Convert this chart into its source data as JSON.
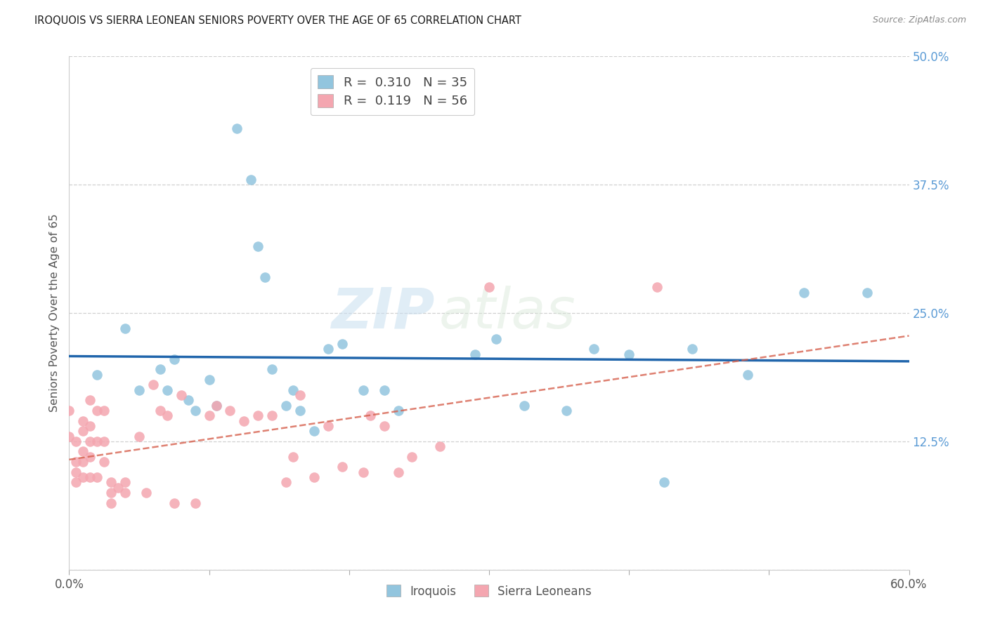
{
  "title": "IROQUOIS VS SIERRA LEONEAN SENIORS POVERTY OVER THE AGE OF 65 CORRELATION CHART",
  "source": "Source: ZipAtlas.com",
  "ylabel": "Seniors Poverty Over the Age of 65",
  "xlim": [
    0.0,
    0.6
  ],
  "ylim": [
    0.0,
    0.5
  ],
  "xticks": [
    0.0,
    0.1,
    0.2,
    0.3,
    0.4,
    0.5,
    0.6
  ],
  "yticks": [
    0.0,
    0.125,
    0.25,
    0.375,
    0.5
  ],
  "yticklabels": [
    "",
    "12.5%",
    "25.0%",
    "37.5%",
    "50.0%"
  ],
  "grid_color": "#d0d0d0",
  "background_color": "#ffffff",
  "iroquois_color": "#92c5de",
  "sierra_color": "#f4a6b0",
  "iroquois_line_color": "#2166ac",
  "sierra_line_color": "#d6604d",
  "legend_iroquois_R": "0.310",
  "legend_iroquois_N": "35",
  "legend_sierra_R": "0.119",
  "legend_sierra_N": "56",
  "watermark_zip": "ZIP",
  "watermark_atlas": "atlas",
  "iroquois_x": [
    0.02,
    0.04,
    0.05,
    0.065,
    0.07,
    0.075,
    0.085,
    0.09,
    0.1,
    0.105,
    0.12,
    0.135,
    0.14,
    0.145,
    0.155,
    0.16,
    0.185,
    0.195,
    0.21,
    0.225,
    0.235,
    0.29,
    0.305,
    0.325,
    0.355,
    0.375,
    0.4,
    0.425,
    0.445,
    0.485,
    0.525,
    0.57,
    0.13,
    0.165,
    0.175
  ],
  "iroquois_y": [
    0.19,
    0.235,
    0.175,
    0.195,
    0.175,
    0.205,
    0.165,
    0.155,
    0.185,
    0.16,
    0.43,
    0.315,
    0.285,
    0.195,
    0.16,
    0.175,
    0.215,
    0.22,
    0.175,
    0.175,
    0.155,
    0.21,
    0.225,
    0.16,
    0.155,
    0.215,
    0.21,
    0.085,
    0.215,
    0.19,
    0.27,
    0.27,
    0.38,
    0.155,
    0.135
  ],
  "sierra_x": [
    0.0,
    0.0,
    0.005,
    0.005,
    0.005,
    0.005,
    0.01,
    0.01,
    0.01,
    0.01,
    0.01,
    0.015,
    0.015,
    0.015,
    0.015,
    0.015,
    0.02,
    0.02,
    0.02,
    0.025,
    0.025,
    0.025,
    0.03,
    0.03,
    0.03,
    0.035,
    0.04,
    0.04,
    0.05,
    0.055,
    0.06,
    0.065,
    0.07,
    0.075,
    0.08,
    0.09,
    0.1,
    0.105,
    0.115,
    0.125,
    0.135,
    0.145,
    0.155,
    0.16,
    0.165,
    0.175,
    0.185,
    0.195,
    0.21,
    0.215,
    0.225,
    0.235,
    0.245,
    0.265,
    0.3,
    0.42
  ],
  "sierra_y": [
    0.155,
    0.13,
    0.125,
    0.105,
    0.095,
    0.085,
    0.145,
    0.135,
    0.115,
    0.105,
    0.09,
    0.165,
    0.14,
    0.125,
    0.11,
    0.09,
    0.155,
    0.125,
    0.09,
    0.155,
    0.125,
    0.105,
    0.085,
    0.075,
    0.065,
    0.08,
    0.085,
    0.075,
    0.13,
    0.075,
    0.18,
    0.155,
    0.15,
    0.065,
    0.17,
    0.065,
    0.15,
    0.16,
    0.155,
    0.145,
    0.15,
    0.15,
    0.085,
    0.11,
    0.17,
    0.09,
    0.14,
    0.1,
    0.095,
    0.15,
    0.14,
    0.095,
    0.11,
    0.12,
    0.275,
    0.275
  ]
}
